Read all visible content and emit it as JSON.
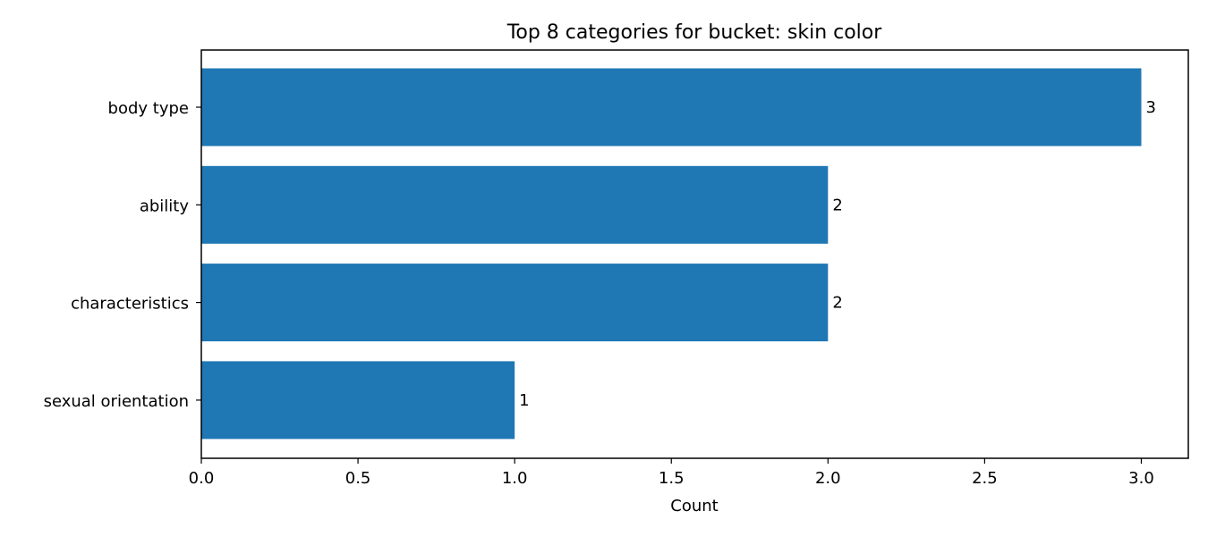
{
  "chart_data": {
    "type": "bar",
    "orientation": "horizontal",
    "title": "Top 8 categories for bucket: skin color",
    "xlabel": "Count",
    "ylabel": "",
    "categories": [
      "body type",
      "ability",
      "characteristics",
      "sexual orientation"
    ],
    "values": [
      3,
      2,
      2,
      1
    ],
    "data_labels": [
      "3",
      "2",
      "2",
      "1"
    ],
    "xlim": [
      0,
      3.15
    ],
    "xticks": [
      0,
      0.5,
      1,
      1.5,
      2,
      2.5,
      3
    ],
    "xtick_labels": [
      "0.0",
      "0.5",
      "1.0",
      "1.5",
      "2.0",
      "2.5",
      "3.0"
    ],
    "grid": false,
    "legend": "none",
    "bar_color": "#1f77b4"
  }
}
